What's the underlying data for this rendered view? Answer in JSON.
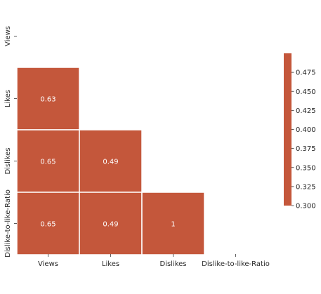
{
  "chart_data": {
    "type": "heatmap",
    "title": "",
    "xlabel": "",
    "ylabel": "",
    "x_categories": [
      "Views",
      "Likes",
      "Dislikes",
      "Dislike-to-like-Ratio"
    ],
    "y_categories": [
      "Views",
      "Likes",
      "Dislikes",
      "Dislike-to-like-Ratio"
    ],
    "mask": "upper-triangle-including-diagonal",
    "cells": [
      {
        "row": "Likes",
        "col": "Views",
        "value": 0.63,
        "label": "0.63"
      },
      {
        "row": "Dislikes",
        "col": "Views",
        "value": 0.65,
        "label": "0.65"
      },
      {
        "row": "Dislikes",
        "col": "Likes",
        "value": 0.49,
        "label": "0.49"
      },
      {
        "row": "Dislike-to-like-Ratio",
        "col": "Views",
        "value": 0.65,
        "label": "0.65"
      },
      {
        "row": "Dislike-to-like-Ratio",
        "col": "Likes",
        "value": 0.49,
        "label": "0.49"
      },
      {
        "row": "Dislike-to-like-Ratio",
        "col": "Dislikes",
        "value": 1,
        "label": "1"
      }
    ],
    "colorbar": {
      "range": [
        0.3,
        0.5
      ],
      "ticks": [
        "0.300",
        "0.325",
        "0.350",
        "0.375",
        "0.400",
        "0.425",
        "0.450",
        "0.475"
      ],
      "tick_values": [
        0.3,
        0.325,
        0.35,
        0.375,
        0.4,
        0.425,
        0.45,
        0.475
      ]
    },
    "cell_color": "#c4573b",
    "annotation_color": "#ffffff",
    "grid_line_color": "#ffffff"
  }
}
